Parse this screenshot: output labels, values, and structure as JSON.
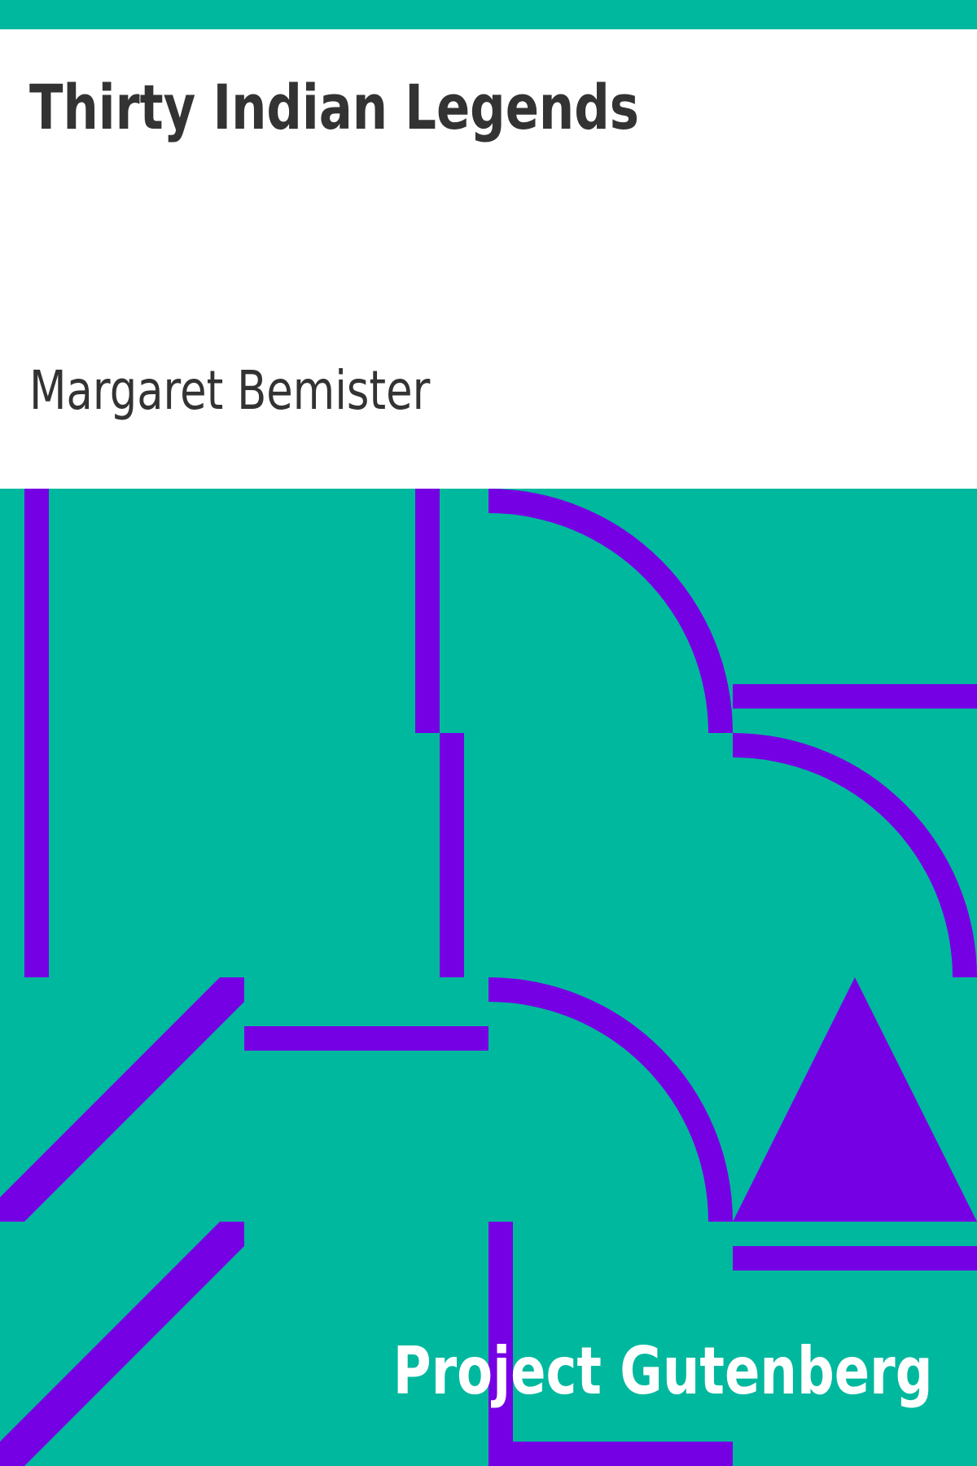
{
  "book": {
    "title": "Thirty Indian Legends",
    "author": "Margaret Bemister"
  },
  "publisher": {
    "name": "Project Gutenberg"
  },
  "colors": {
    "background": "#00b89e",
    "pattern": "#7600e4",
    "header": "#ffffff",
    "text": "#333333",
    "publisher_text": "#ffffff"
  }
}
